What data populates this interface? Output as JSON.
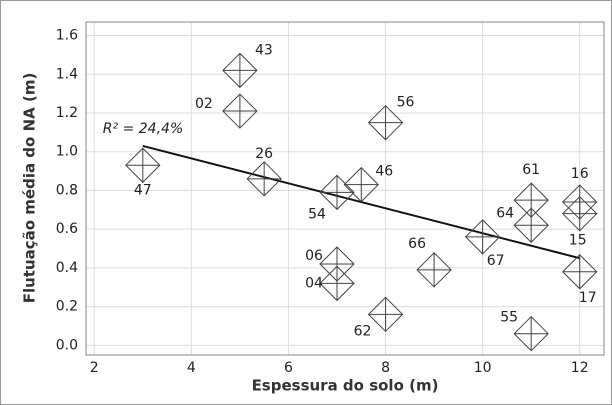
{
  "chart_data": {
    "type": "scatter",
    "x_label": "Espessura do solo (m)",
    "y_label": "Flutuação média do NA (m)",
    "x": [
      5,
      5,
      8,
      3,
      5.5,
      7,
      7.5,
      11,
      12,
      11,
      12,
      10,
      7,
      7,
      9,
      12,
      8,
      11
    ],
    "values": [
      1.42,
      1.21,
      1.15,
      0.93,
      0.86,
      0.79,
      0.83,
      0.75,
      0.74,
      0.62,
      0.68,
      0.56,
      0.42,
      0.32,
      0.39,
      0.38,
      0.16,
      0.06
    ],
    "point_labels": [
      "43",
      "02",
      "56",
      "47",
      "26",
      "54",
      "46",
      "61",
      "16",
      "64",
      "15",
      "67",
      "06",
      "04",
      "66",
      "17",
      "62",
      "55"
    ],
    "color": "#444444",
    "trendline": {
      "x": [
        3,
        12
      ],
      "values": [
        1.03,
        0.45
      ],
      "color": "#111111"
    },
    "annotation": "R² = 24,4%",
    "xlim": [
      1.83,
      12.5
    ],
    "ylim": [
      -0.05,
      1.67
    ],
    "xticks": [
      2,
      4,
      6,
      8,
      10,
      12
    ],
    "yticks": [
      {
        "value": 0,
        "label": "0.0"
      },
      0.2,
      0.4,
      0.6,
      0.8,
      {
        "value": 1,
        "label": "1.0"
      },
      1.2,
      1.4,
      1.6
    ],
    "grid": true
  }
}
